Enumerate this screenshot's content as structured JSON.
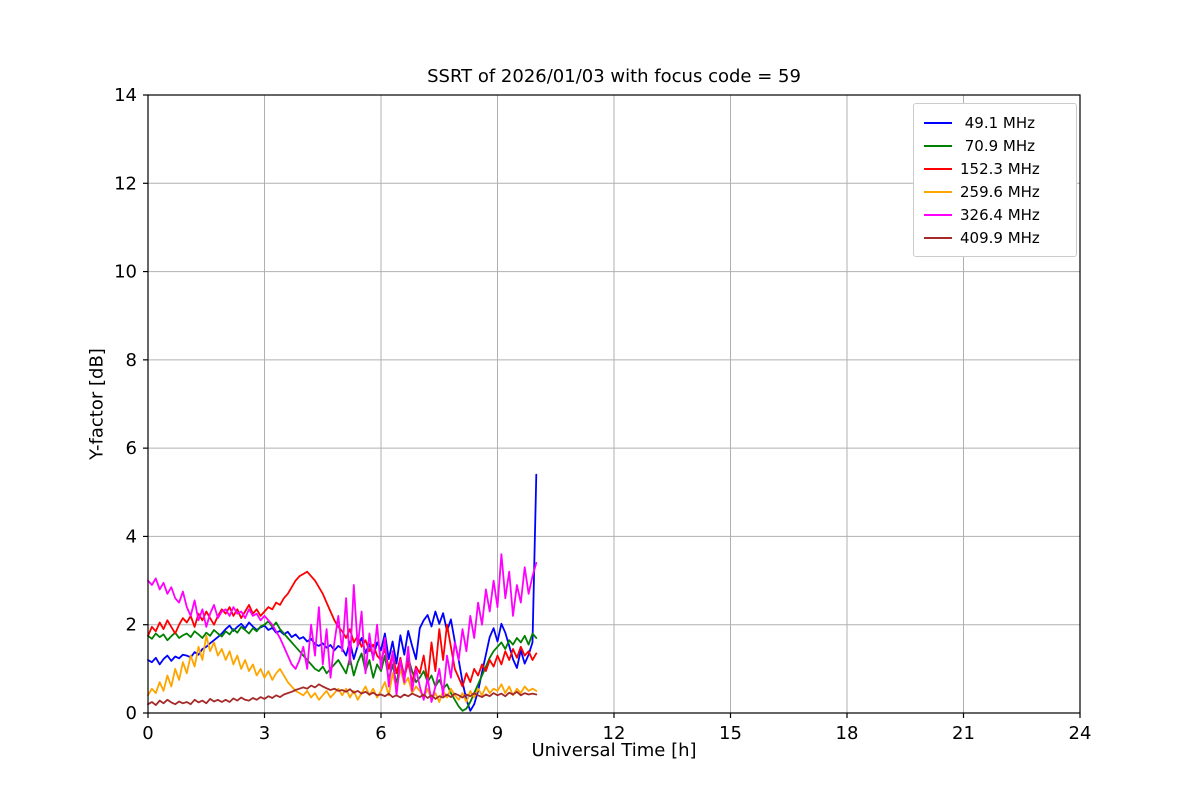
{
  "chart_data": {
    "type": "line",
    "title": "SSRT of 2026/01/03 with focus code = 59",
    "xlabel": "Universal Time [h]",
    "ylabel": "Y-factor [dB]",
    "xlim": [
      0,
      24
    ],
    "ylim": [
      0,
      14
    ],
    "x_ticks": [
      0,
      3,
      6,
      9,
      12,
      15,
      18,
      21,
      24
    ],
    "y_ticks": [
      0,
      2,
      4,
      6,
      8,
      10,
      12,
      14
    ],
    "grid": true,
    "grid_color": "#b0b0b0",
    "legend_position": "upper right",
    "x_start": 0,
    "x_step": 0.1,
    "series": [
      {
        "name": "49.1 MHz",
        "label": " 49.1 MHz",
        "color": "#0000ff",
        "values": [
          1.2,
          1.15,
          1.25,
          1.1,
          1.22,
          1.3,
          1.18,
          1.28,
          1.24,
          1.32,
          1.3,
          1.26,
          1.38,
          1.32,
          1.45,
          1.5,
          1.58,
          1.65,
          1.72,
          1.8,
          1.9,
          1.98,
          1.86,
          1.95,
          2.02,
          1.92,
          2.05,
          1.96,
          1.88,
          1.94,
          1.98,
          1.88,
          1.93,
          1.82,
          1.86,
          1.78,
          1.84,
          1.72,
          1.78,
          1.68,
          1.72,
          1.62,
          1.68,
          1.56,
          1.52,
          1.58,
          1.48,
          1.54,
          1.42,
          1.52,
          1.46,
          1.3,
          1.62,
          1.22,
          1.52,
          1.7,
          1.36,
          1.56,
          1.26,
          1.6,
          1.42,
          1.8,
          1.22,
          1.62,
          1.12,
          1.76,
          1.32,
          1.86,
          1.52,
          1.22,
          1.92,
          2.1,
          2.22,
          1.96,
          2.3,
          2.02,
          2.26,
          1.86,
          2.12,
          1.62,
          1.2,
          0.7,
          0.3,
          0.05,
          0.2,
          0.5,
          0.92,
          1.32,
          1.72,
          1.92,
          1.62,
          2.02,
          1.82,
          1.52,
          1.22,
          1.02,
          1.42,
          1.12,
          1.32,
          1.6,
          5.4
        ]
      },
      {
        "name": "70.9 MHz",
        "label": " 70.9 MHz",
        "color": "#008000",
        "values": [
          1.75,
          1.68,
          1.8,
          1.72,
          1.78,
          1.65,
          1.74,
          1.82,
          1.7,
          1.76,
          1.8,
          1.72,
          1.85,
          1.78,
          1.7,
          1.82,
          1.75,
          1.88,
          1.8,
          1.73,
          1.85,
          1.78,
          1.9,
          1.82,
          1.95,
          1.88,
          1.8,
          1.92,
          1.85,
          1.96,
          2.0,
          2.08,
          1.95,
          2.05,
          1.9,
          1.8,
          1.7,
          1.6,
          1.5,
          1.4,
          1.3,
          1.2,
          1.1,
          1.0,
          0.95,
          1.05,
          0.9,
          1.0,
          1.1,
          1.2,
          1.05,
          0.9,
          1.25,
          0.85,
          1.15,
          1.35,
          0.95,
          1.2,
          0.8,
          1.1,
          0.95,
          1.3,
          0.75,
          1.1,
          0.65,
          1.2,
          0.85,
          1.25,
          0.95,
          0.7,
          0.8,
          0.95,
          0.7,
          0.85,
          0.6,
          0.75,
          0.55,
          0.65,
          0.45,
          0.3,
          0.15,
          0.05,
          0.1,
          0.25,
          0.45,
          0.65,
          0.85,
          1.05,
          1.25,
          1.4,
          1.5,
          1.6,
          1.45,
          1.65,
          1.55,
          1.7,
          1.6,
          1.75,
          1.55,
          1.8,
          1.7
        ]
      },
      {
        "name": "152.3 MHz",
        "label": "152.3 MHz",
        "color": "#ff0000",
        "values": [
          1.75,
          1.95,
          1.85,
          2.05,
          1.9,
          2.1,
          1.95,
          1.8,
          2.0,
          2.15,
          2.05,
          2.2,
          1.95,
          2.25,
          2.1,
          2.3,
          2.15,
          2.0,
          2.2,
          2.35,
          2.25,
          2.4,
          2.2,
          2.35,
          2.15,
          2.3,
          2.45,
          2.25,
          2.35,
          2.2,
          2.3,
          2.4,
          2.35,
          2.5,
          2.45,
          2.6,
          2.7,
          2.85,
          3.0,
          3.1,
          3.15,
          3.2,
          3.1,
          3.0,
          2.85,
          2.7,
          2.5,
          2.3,
          2.1,
          1.95,
          1.85,
          1.7,
          1.9,
          1.6,
          1.75,
          1.5,
          1.65,
          1.4,
          1.55,
          1.3,
          1.2,
          1.45,
          1.0,
          1.35,
          0.9,
          1.25,
          0.8,
          1.15,
          0.7,
          1.05,
          0.9,
          1.3,
          0.7,
          1.6,
          0.95,
          1.9,
          1.2,
          2.0,
          1.5,
          1.0,
          0.8,
          0.6,
          0.9,
          0.7,
          1.0,
          0.85,
          1.1,
          0.95,
          1.2,
          1.05,
          1.3,
          1.1,
          1.4,
          1.2,
          1.45,
          1.25,
          1.5,
          1.3,
          1.4,
          1.2,
          1.35
        ]
      },
      {
        "name": "259.6 MHz",
        "label": "259.6 MHz",
        "color": "#ffa500",
        "values": [
          0.4,
          0.55,
          0.45,
          0.7,
          0.5,
          0.85,
          0.6,
          1.0,
          0.75,
          1.15,
          0.9,
          1.3,
          1.05,
          1.5,
          1.2,
          1.75,
          1.4,
          1.6,
          1.3,
          1.45,
          1.2,
          1.4,
          1.1,
          1.3,
          1.0,
          1.2,
          0.95,
          1.1,
          0.85,
          1.0,
          0.8,
          0.95,
          0.75,
          0.9,
          1.0,
          0.85,
          0.7,
          0.6,
          0.5,
          0.45,
          0.4,
          0.5,
          0.35,
          0.45,
          0.3,
          0.4,
          0.5,
          0.35,
          0.45,
          0.55,
          0.4,
          0.55,
          0.35,
          0.5,
          0.3,
          0.45,
          0.6,
          0.4,
          0.55,
          0.35,
          0.5,
          0.7,
          0.4,
          0.9,
          0.55,
          1.0,
          0.65,
          0.8,
          0.45,
          0.6,
          0.5,
          0.35,
          0.55,
          0.3,
          0.45,
          0.25,
          0.5,
          0.35,
          0.55,
          0.4,
          0.3,
          0.45,
          0.25,
          0.5,
          0.35,
          0.55,
          0.4,
          0.6,
          0.45,
          0.55,
          0.5,
          0.65,
          0.45,
          0.6,
          0.4,
          0.55,
          0.45,
          0.6,
          0.5,
          0.55,
          0.5
        ]
      },
      {
        "name": "326.4 MHz",
        "label": "326.4 MHz",
        "color": "#ff00ff",
        "values": [
          3.0,
          2.9,
          3.05,
          2.8,
          2.95,
          2.7,
          2.85,
          2.6,
          2.5,
          2.75,
          2.4,
          2.2,
          2.55,
          2.1,
          2.35,
          1.95,
          2.25,
          2.45,
          2.15,
          2.3,
          2.35,
          2.2,
          2.4,
          2.25,
          2.3,
          2.15,
          2.35,
          2.2,
          2.25,
          2.1,
          2.2,
          2.1,
          2.0,
          1.85,
          1.7,
          1.5,
          1.3,
          1.1,
          1.0,
          1.2,
          1.5,
          1.0,
          2.0,
          1.3,
          2.4,
          1.1,
          1.9,
          0.8,
          1.6,
          2.2,
          1.4,
          2.6,
          1.1,
          2.9,
          1.5,
          2.3,
          0.9,
          1.8,
          1.2,
          2.0,
          1.0,
          1.7,
          0.6,
          1.4,
          0.4,
          1.2,
          0.7,
          1.5,
          0.5,
          1.0,
          0.6,
          0.3,
          0.8,
          0.25,
          0.6,
          1.0,
          0.4,
          1.3,
          0.8,
          1.6,
          1.2,
          1.9,
          1.4,
          2.2,
          1.7,
          2.5,
          2.0,
          2.8,
          2.3,
          3.0,
          2.4,
          3.6,
          2.6,
          3.2,
          2.2,
          2.9,
          2.5,
          3.3,
          2.7,
          3.1,
          3.4
        ]
      },
      {
        "name": "409.9 MHz",
        "label": "409.9 MHz",
        "color": "#a52a2a",
        "values": [
          0.2,
          0.25,
          0.18,
          0.28,
          0.22,
          0.3,
          0.24,
          0.2,
          0.26,
          0.22,
          0.25,
          0.2,
          0.3,
          0.24,
          0.28,
          0.22,
          0.32,
          0.26,
          0.3,
          0.25,
          0.3,
          0.25,
          0.33,
          0.28,
          0.35,
          0.3,
          0.28,
          0.34,
          0.3,
          0.36,
          0.32,
          0.38,
          0.34,
          0.4,
          0.36,
          0.42,
          0.45,
          0.48,
          0.52,
          0.55,
          0.58,
          0.55,
          0.62,
          0.58,
          0.65,
          0.6,
          0.56,
          0.52,
          0.55,
          0.5,
          0.52,
          0.48,
          0.54,
          0.46,
          0.5,
          0.44,
          0.48,
          0.42,
          0.46,
          0.4,
          0.42,
          0.38,
          0.44,
          0.36,
          0.4,
          0.35,
          0.42,
          0.38,
          0.44,
          0.4,
          0.36,
          0.42,
          0.34,
          0.4,
          0.32,
          0.38,
          0.35,
          0.42,
          0.36,
          0.44,
          0.4,
          0.35,
          0.42,
          0.38,
          0.45,
          0.4,
          0.36,
          0.42,
          0.38,
          0.45,
          0.4,
          0.44,
          0.38,
          0.46,
          0.42,
          0.48,
          0.4,
          0.45,
          0.42,
          0.44,
          0.42
        ]
      }
    ]
  }
}
